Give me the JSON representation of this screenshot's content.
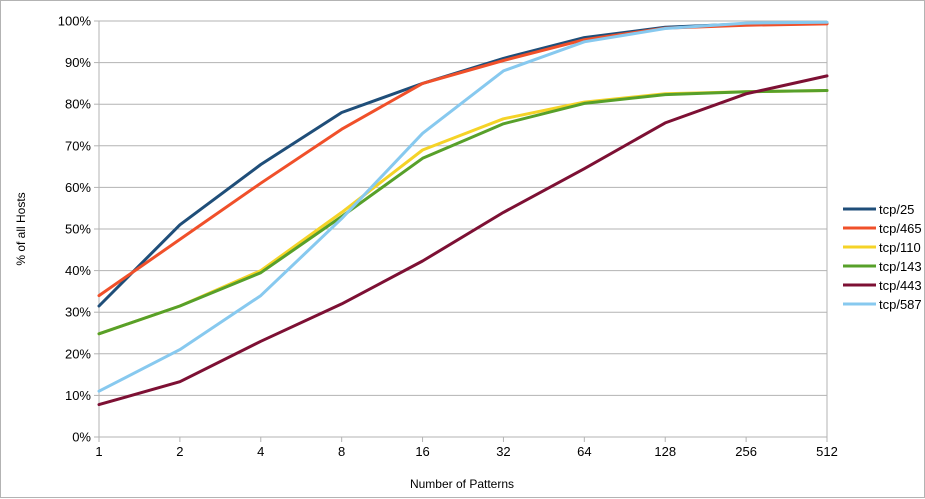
{
  "chart_data": {
    "type": "line",
    "title": "",
    "xlabel": "Number of Patterns",
    "ylabel": "% of all Hosts",
    "x": [
      "1",
      "2",
      "4",
      "8",
      "16",
      "32",
      "64",
      "128",
      "256",
      "512"
    ],
    "y_ticks": [
      "0%",
      "10%",
      "20%",
      "30%",
      "40%",
      "50%",
      "60%",
      "70%",
      "80%",
      "90%",
      "100%"
    ],
    "ylim": [
      0,
      100
    ],
    "grid": true,
    "legend_position": "right",
    "series": [
      {
        "name": "tcp/25",
        "color": "#1f4e79",
        "values": [
          31.5,
          51.0,
          65.5,
          78.0,
          85.0,
          91.0,
          96.0,
          98.5,
          99.3,
          99.5
        ]
      },
      {
        "name": "tcp/465",
        "color": "#f0502a",
        "values": [
          34.0,
          47.5,
          61.0,
          74.0,
          85.0,
          90.5,
          95.5,
          98.3,
          99.0,
          99.3
        ]
      },
      {
        "name": "tcp/110",
        "color": "#f5d327",
        "values": [
          24.8,
          31.5,
          40.0,
          54.0,
          69.0,
          76.5,
          80.5,
          82.5,
          83.0,
          83.3
        ]
      },
      {
        "name": "tcp/143",
        "color": "#57a02a",
        "values": [
          24.8,
          31.5,
          39.5,
          53.0,
          67.0,
          75.3,
          80.2,
          82.3,
          83.0,
          83.3
        ]
      },
      {
        "name": "tcp/443",
        "color": "#7d1034",
        "values": [
          7.8,
          13.3,
          23.0,
          32.0,
          42.3,
          54.0,
          64.5,
          75.5,
          82.5,
          86.8
        ]
      },
      {
        "name": "tcp/587",
        "color": "#87c9ef",
        "values": [
          11.0,
          21.0,
          34.0,
          52.5,
          73.0,
          88.0,
          95.0,
          98.2,
          99.5,
          99.7
        ]
      }
    ]
  }
}
